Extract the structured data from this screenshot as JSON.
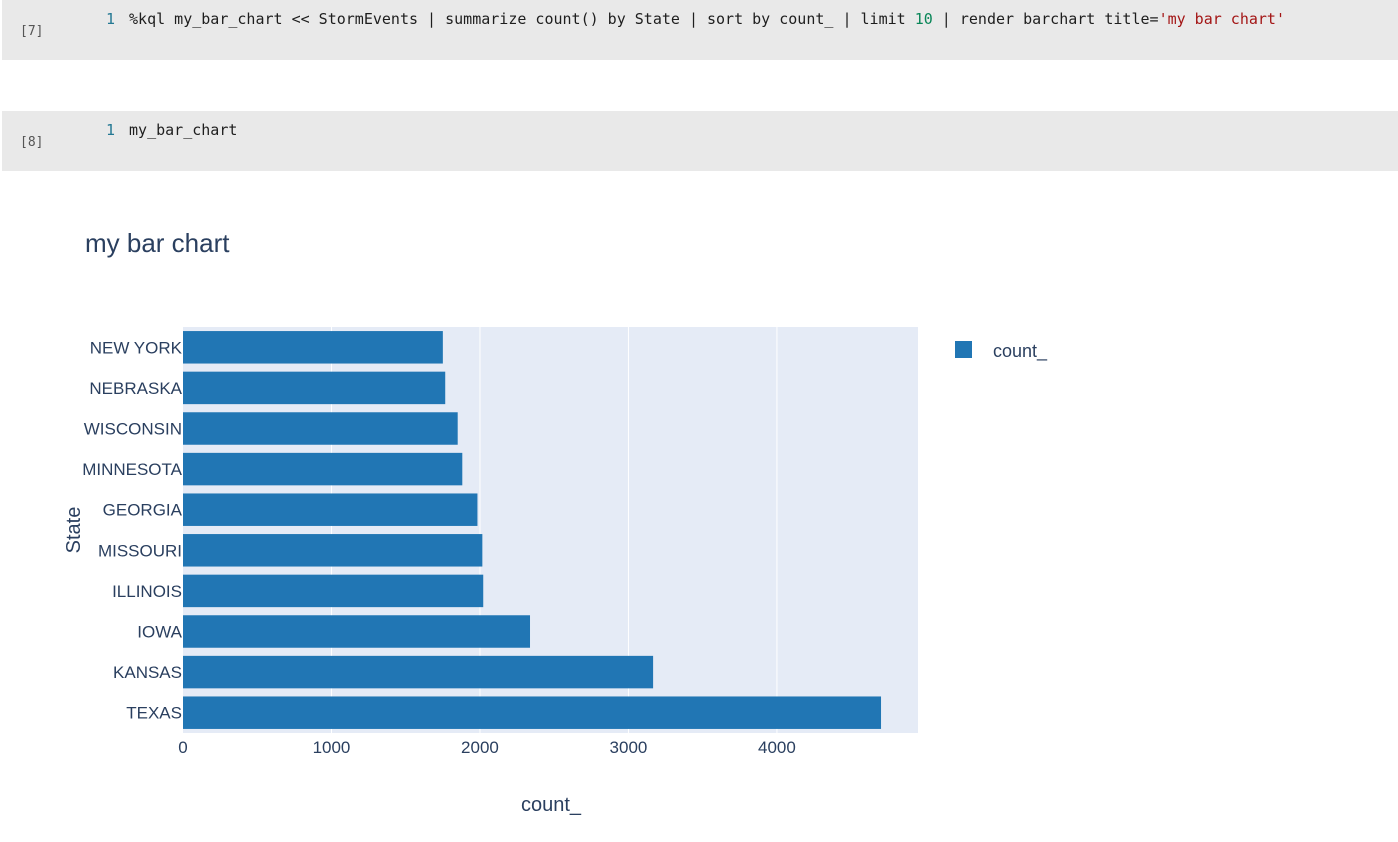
{
  "cells": [
    {
      "index_label": "[7]",
      "line_number": "1",
      "code_before_number": "%kql my_bar_chart << StormEvents | summarize count() by State | sort by count_ | limit ",
      "code_number": "10",
      "code_mid": " | render barchart title=",
      "code_string": "'my bar chart'"
    },
    {
      "index_label": "[8]",
      "line_number": "1",
      "code": "my_bar_chart"
    }
  ],
  "colors": {
    "bar": "#2176b4",
    "plot_bg": "#e5ebf6",
    "cell_bg": "#e9e9e9",
    "text": "#2a3f5f",
    "grid": "#ffffff"
  },
  "chart_data": {
    "type": "bar",
    "orientation": "horizontal",
    "title": "my bar chart",
    "xlabel": "count_",
    "ylabel": "State",
    "categories": [
      "TEXAS",
      "KANSAS",
      "IOWA",
      "ILLINOIS",
      "MISSOURI",
      "GEORGIA",
      "MINNESOTA",
      "WISCONSIN",
      "NEBRASKA",
      "NEW YORK"
    ],
    "series": [
      {
        "name": "count_",
        "values": [
          4701,
          3166,
          2337,
          2022,
          2016,
          1983,
          1881,
          1850,
          1766,
          1750
        ]
      }
    ],
    "xlim": [
      0,
      4950
    ],
    "xticks": [
      0,
      1000,
      2000,
      3000,
      4000
    ],
    "xtick_labels": [
      "0",
      "1000",
      "2000",
      "3000",
      "4000"
    ],
    "grid": true,
    "legend_position": "top-right"
  }
}
